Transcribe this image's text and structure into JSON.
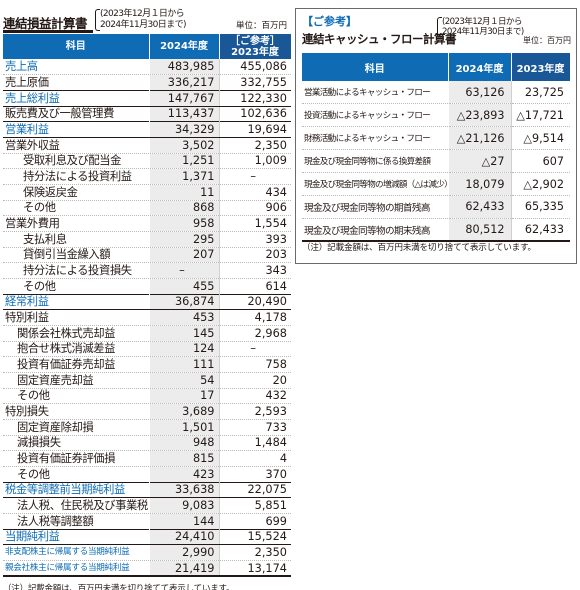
{
  "unit": "単位：百万円",
  "note": "（注）記載金額は、百万円未満を切り捨てて表示しています。",
  "pl": {
    "title": "連結損益計算書",
    "period_line1": "(2023年12月１日から",
    "period_line2": "2024年11月30日まで)",
    "columns": {
      "item": "科目",
      "fy2024": "2024年度",
      "fy2023_line1": "［ご参考］",
      "fy2023_line2": "2023年度"
    },
    "rows": [
      {
        "label": "売上高",
        "v1": "483,985",
        "v2": "455,086"
      },
      {
        "label": "売上原価",
        "v1": "336,217",
        "v2": "332,755"
      },
      {
        "label": "売上総利益",
        "v1": "147,767",
        "v2": "122,330"
      },
      {
        "label": "販売費及び一般管理費",
        "v1": "113,437",
        "v2": "102,636"
      },
      {
        "label": "営業利益",
        "v1": "34,329",
        "v2": "19,694"
      },
      {
        "label": "営業外収益",
        "v1": "3,502",
        "v2": "2,350"
      },
      {
        "label": "受取利息及び配当金",
        "v1": "1,251",
        "v2": "1,009"
      },
      {
        "label": "持分法による投資利益",
        "v1": "1,371",
        "v2": "–"
      },
      {
        "label": "保険返戻金",
        "v1": "11",
        "v2": "434"
      },
      {
        "label": "その他",
        "v1": "868",
        "v2": "906"
      },
      {
        "label": "営業外費用",
        "v1": "958",
        "v2": "1,554"
      },
      {
        "label": "支払利息",
        "v1": "295",
        "v2": "393"
      },
      {
        "label": "貸倒引当金繰入額",
        "v1": "207",
        "v2": "203"
      },
      {
        "label": "持分法による投資損失",
        "v1": "–",
        "v2": "343"
      },
      {
        "label": "その他",
        "v1": "455",
        "v2": "614"
      },
      {
        "label": "経常利益",
        "v1": "36,874",
        "v2": "20,490"
      },
      {
        "label": "特別利益",
        "v1": "453",
        "v2": "4,178"
      },
      {
        "label": "関係会社株式売却益",
        "v1": "145",
        "v2": "2,968"
      },
      {
        "label": "抱合せ株式消滅差益",
        "v1": "124",
        "v2": "–"
      },
      {
        "label": "投資有価証券売却益",
        "v1": "111",
        "v2": "758"
      },
      {
        "label": "固定資産売却益",
        "v1": "54",
        "v2": "20"
      },
      {
        "label": "その他",
        "v1": "17",
        "v2": "432"
      },
      {
        "label": "特別損失",
        "v1": "3,689",
        "v2": "2,593"
      },
      {
        "label": "固定資産除却損",
        "v1": "1,501",
        "v2": "733"
      },
      {
        "label": "減損損失",
        "v1": "948",
        "v2": "1,484"
      },
      {
        "label": "投資有価証券評価損",
        "v1": "815",
        "v2": "4"
      },
      {
        "label": "その他",
        "v1": "423",
        "v2": "370"
      },
      {
        "label": "税金等調整前当期純利益",
        "v1": "33,638",
        "v2": "22,075"
      },
      {
        "label": "法人税、住民税及び事業税",
        "v1": "9,083",
        "v2": "5,851"
      },
      {
        "label": "法人税等調整額",
        "v1": "144",
        "v2": "699"
      },
      {
        "label": "当期純利益",
        "v1": "24,410",
        "v2": "15,524"
      },
      {
        "label": "非支配株主に帰属する当期純利益",
        "v1": "2,990",
        "v2": "2,350"
      },
      {
        "label": "親会社株主に帰属する当期純利益",
        "v1": "21,419",
        "v2": "13,174"
      }
    ]
  },
  "cf": {
    "reference_label": "【ご参考】",
    "title": "連結キャッシュ・フロー計算書",
    "period_line1": "(2023年12月１日から",
    "period_line2": "2024年11月30日まで)",
    "columns": {
      "item": "科目",
      "fy2024": "2024年度",
      "fy2023": "2023年度"
    },
    "rows": [
      {
        "label": "営業活動によるキャッシュ・フロー",
        "v1": "63,126",
        "v2": "23,725"
      },
      {
        "label": "投資活動によるキャッシュ・フロー",
        "v1": "△23,893",
        "v2": "△17,721"
      },
      {
        "label": "財務活動によるキャッシュ・フロー",
        "v1": "△21,126",
        "v2": "△9,514"
      },
      {
        "label": "現金及び現金同等物に係る換算差額",
        "v1": "△27",
        "v2": "607"
      },
      {
        "label": "現金及び現金同等物の増減額（△は減少）",
        "v1": "18,079",
        "v2": "△2,902"
      },
      {
        "label": "現金及び現金同等物の期首残高",
        "v1": "62,433",
        "v2": "65,335"
      },
      {
        "label": "現金及び現金同等物の期末残高",
        "v1": "80,512",
        "v2": "62,433"
      }
    ]
  }
}
